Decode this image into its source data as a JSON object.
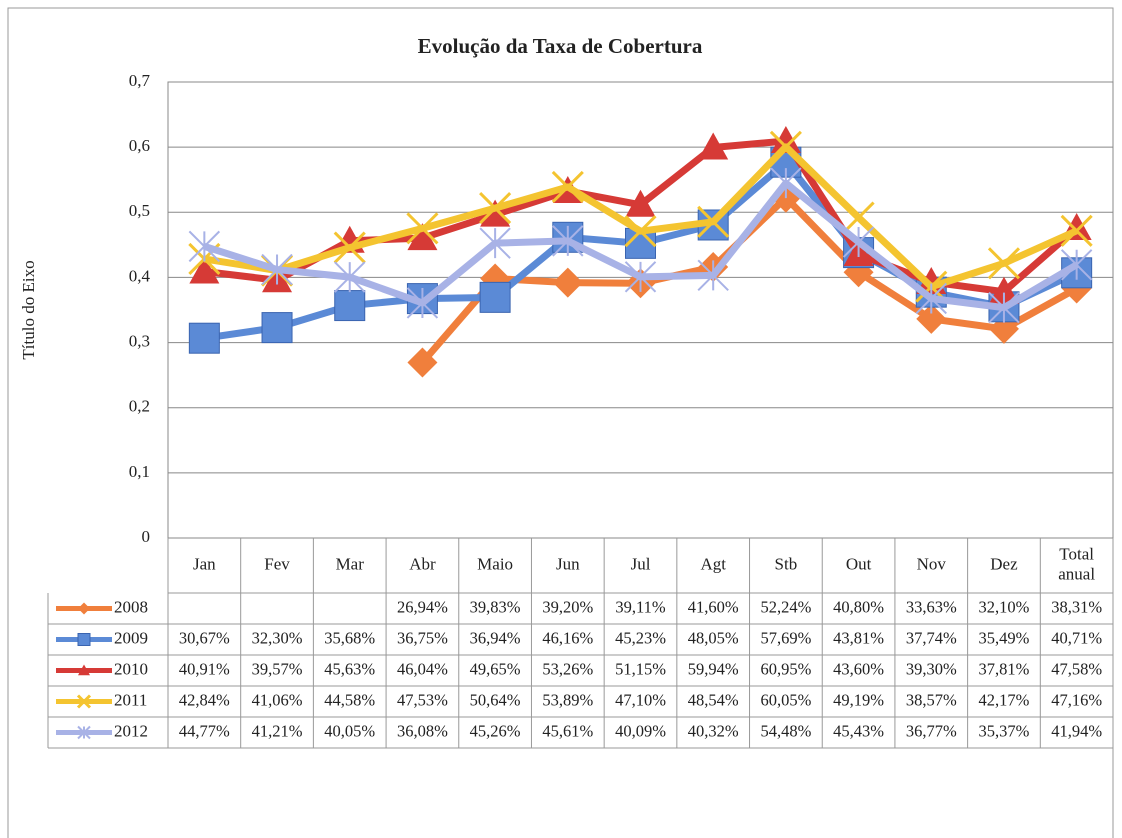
{
  "chart_data": {
    "type": "line",
    "title": "Evolução da Taxa de Cobertura",
    "y_label": "Título do Eixo",
    "categories": [
      "Jan",
      "Fev",
      "Mar",
      "Abr",
      "Maio",
      "Jun",
      "Jul",
      "Agt",
      "Stb",
      "Out",
      "Nov",
      "Dez",
      "Total anual"
    ],
    "ylim": [
      0,
      0.7
    ],
    "yticks": [
      0,
      {
        "value": 0.1,
        "label": "0,1"
      },
      {
        "value": 0.2,
        "label": "0,2"
      },
      {
        "value": 0.3,
        "label": "0,3"
      },
      {
        "value": 0.4,
        "label": "0,4"
      },
      {
        "value": 0.5,
        "label": "0,5"
      },
      {
        "value": 0.6,
        "label": "0,6"
      },
      {
        "value": 0.7,
        "label": "0,7"
      }
    ],
    "grid": true,
    "legend": "bottom",
    "data_table": true,
    "series": [
      {
        "name": "2008",
        "color": "#f07f3c",
        "marker": "diamond",
        "values": [
          null,
          null,
          null,
          0.2694,
          0.3983,
          0.392,
          0.3911,
          0.416,
          0.5224,
          0.408,
          0.3363,
          0.321,
          0.3831
        ],
        "value_labels": [
          null,
          null,
          null,
          "26,94%",
          "39,83%",
          "39,20%",
          "39,11%",
          "41,60%",
          "52,24%",
          "40,80%",
          "33,63%",
          "32,10%",
          "38,31%"
        ]
      },
      {
        "name": "2009",
        "color": "#5b8ad6",
        "marker": "square",
        "values": [
          0.3067,
          0.323,
          0.3568,
          0.3675,
          0.3694,
          0.4616,
          0.4523,
          0.4805,
          0.5769,
          0.4381,
          0.3774,
          0.3549,
          0.4071
        ],
        "value_labels": [
          "30,67%",
          "32,30%",
          "35,68%",
          "36,75%",
          "36,94%",
          "46,16%",
          "45,23%",
          "48,05%",
          "57,69%",
          "43,81%",
          "37,74%",
          "35,49%",
          "40,71%"
        ]
      },
      {
        "name": "2010",
        "color": "#d63a36",
        "marker": "triangle",
        "values": [
          0.4091,
          0.3957,
          0.4563,
          0.4604,
          0.4965,
          0.5326,
          0.5115,
          0.5994,
          0.6095,
          0.436,
          0.393,
          0.3781,
          0.4758
        ],
        "value_labels": [
          "40,91%",
          "39,57%",
          "45,63%",
          "46,04%",
          "49,65%",
          "53,26%",
          "51,15%",
          "59,94%",
          "60,95%",
          "43,60%",
          "39,30%",
          "37,81%",
          "47,58%"
        ]
      },
      {
        "name": "2011",
        "color": "#f4c430",
        "marker": "x",
        "values": [
          0.4284,
          0.4106,
          0.4458,
          0.4753,
          0.5064,
          0.5389,
          0.471,
          0.4854,
          0.6005,
          0.4919,
          0.3857,
          0.4217,
          0.4716
        ],
        "value_labels": [
          "42,84%",
          "41,06%",
          "44,58%",
          "47,53%",
          "50,64%",
          "53,89%",
          "47,10%",
          "48,54%",
          "60,05%",
          "49,19%",
          "38,57%",
          "42,17%",
          "47,16%"
        ]
      },
      {
        "name": "2012",
        "color": "#a8b2e6",
        "marker": "star",
        "values": [
          0.4477,
          0.4121,
          0.4005,
          0.3608,
          0.4526,
          0.4561,
          0.4009,
          0.4032,
          0.5448,
          0.4543,
          0.3677,
          0.3537,
          0.4194
        ],
        "value_labels": [
          "44,77%",
          "41,21%",
          "40,05%",
          "36,08%",
          "45,26%",
          "45,61%",
          "40,09%",
          "40,32%",
          "54,48%",
          "45,43%",
          "36,77%",
          "35,37%",
          "41,94%"
        ]
      }
    ]
  }
}
